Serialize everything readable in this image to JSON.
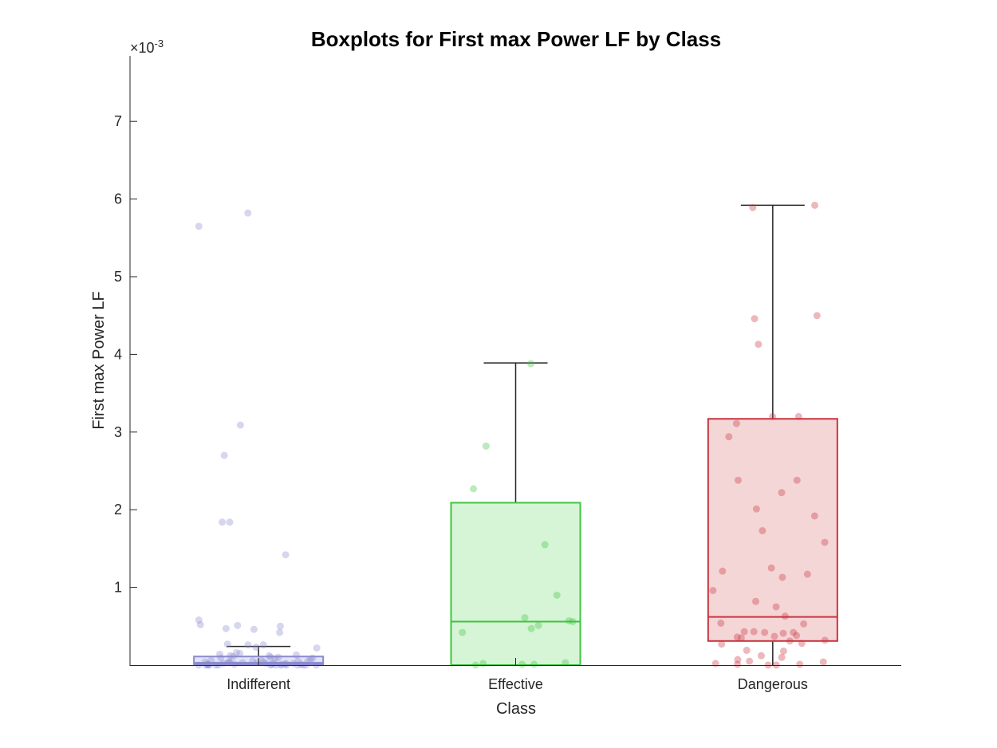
{
  "chart_data": {
    "type": "boxplot",
    "title": "Boxplots for First max Power LF by Class",
    "xlabel": "Class",
    "ylabel": "First max Power LF",
    "y_exponent_base": "×10",
    "y_exponent_power": "-3",
    "ylim": [
      0,
      7.85
    ],
    "yticks": [
      1,
      2,
      3,
      4,
      5,
      6,
      7
    ],
    "ytick_labels": [
      "1",
      "2",
      "3",
      "4",
      "5",
      "6",
      "7"
    ],
    "categories": [
      "Indifferent",
      "Effective",
      "Dangerous"
    ],
    "boxes": [
      {
        "name": "Indifferent",
        "color": "#8a8ad0",
        "fill": "#e4e4f5",
        "whisker_low": 0,
        "q1": 0.01,
        "median": 0.03,
        "q3": 0.11,
        "whisker_high": 0.24,
        "points": [
          5.82,
          5.65,
          3.09,
          2.7,
          1.84,
          1.84,
          1.42,
          0.58,
          0.52,
          0.51,
          0.5,
          0.47,
          0.46,
          0.42,
          0.27,
          0.26,
          0.26,
          0.23,
          0.22,
          0.16,
          0.15,
          0.14,
          0.13,
          0.12,
          0.12,
          0.11,
          0.1,
          0.1,
          0.09,
          0.09,
          0.08,
          0.07,
          0.06,
          0.06,
          0.05,
          0.05,
          0.05,
          0.04,
          0.04,
          0.04,
          0.03,
          0.03,
          0.03,
          0.03,
          0.02,
          0.02,
          0.02,
          0.02,
          0.02,
          0.01,
          0.01,
          0.01,
          0.01,
          0.01,
          0.01,
          0.01,
          0.0,
          0.0,
          0.0,
          0.0,
          0.0,
          0.0,
          0.0,
          0.0,
          0.0,
          0.0,
          0.0,
          0.0,
          0.0,
          0.0
        ]
      },
      {
        "name": "Effective",
        "color": "#3fc43f",
        "fill": "#d6f4d6",
        "whisker_low": 0,
        "q1": 0,
        "median": 0.56,
        "q3": 2.09,
        "whisker_high": 3.89,
        "points": [
          3.88,
          2.82,
          2.27,
          1.55,
          0.9,
          0.61,
          0.57,
          0.56,
          0.51,
          0.47,
          0.42,
          0.03,
          0.02,
          0.01,
          0.01,
          0.0
        ]
      },
      {
        "name": "Dangerous",
        "color": "#c8353e",
        "fill": "#f4d6d7",
        "whisker_low": 0,
        "q1": 0.31,
        "median": 0.62,
        "q3": 3.17,
        "whisker_high": 5.92,
        "points": [
          5.92,
          5.89,
          4.5,
          4.46,
          4.13,
          3.2,
          3.2,
          3.11,
          2.94,
          2.38,
          2.38,
          2.22,
          2.01,
          1.92,
          1.73,
          1.58,
          1.25,
          1.21,
          1.17,
          1.13,
          0.96,
          0.82,
          0.75,
          0.63,
          0.54,
          0.53,
          0.43,
          0.43,
          0.42,
          0.42,
          0.41,
          0.38,
          0.37,
          0.36,
          0.35,
          0.32,
          0.31,
          0.28,
          0.27,
          0.19,
          0.18,
          0.12,
          0.1,
          0.07,
          0.05,
          0.04,
          0.02,
          0.01,
          0.01,
          0.0,
          0.0
        ]
      }
    ],
    "grid": false,
    "legend": "none"
  }
}
